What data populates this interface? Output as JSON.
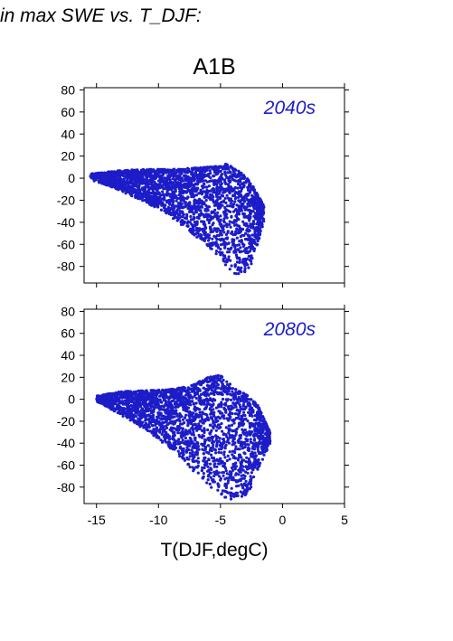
{
  "header_text": "in max SWE vs. T_DJF:",
  "colors": {
    "points": "#1c1cc8",
    "axis": "#000000",
    "period_label": "#1c1cc8"
  },
  "chart_data": [
    {
      "type": "scatter",
      "title": "A1B",
      "period_label": "2040s",
      "xlabel": "",
      "ylabel": "",
      "xlim": [
        -16,
        5
      ],
      "ylim": [
        -95,
        82
      ],
      "yticks": [
        "80",
        "60",
        "40",
        "20",
        "0",
        "-20",
        "-40",
        "-60",
        "-80"
      ],
      "xtick_labels_shown": false,
      "cloud_envelope": {
        "x": [
          -15.5,
          -14.5,
          -13,
          -11,
          -9,
          -7.5,
          -6,
          -5,
          -4.5,
          -4,
          -3.5,
          -3,
          -2.5,
          -2,
          -1.5
        ],
        "upper": [
          4,
          5,
          7,
          8,
          8,
          9,
          10,
          11,
          13,
          10,
          7,
          2,
          -5,
          -15,
          -25
        ],
        "lower": [
          -2,
          -5,
          -12,
          -22,
          -35,
          -48,
          -62,
          -72,
          -80,
          -86,
          -88,
          -85,
          -78,
          -60,
          -40
        ]
      }
    },
    {
      "type": "scatter",
      "title": "",
      "period_label": "2080s",
      "xlabel": "T(DJF,degC)",
      "ylabel": "",
      "xlim": [
        -16,
        5
      ],
      "ylim": [
        -95,
        82
      ],
      "yticks": [
        "80",
        "60",
        "40",
        "20",
        "0",
        "-20",
        "-40",
        "-60",
        "-80"
      ],
      "xticks": [
        "-15",
        "-10",
        "-5",
        "0",
        "5"
      ],
      "cloud_envelope": {
        "x": [
          -15,
          -14,
          -13,
          -11,
          -9,
          -7.5,
          -6,
          -5,
          -4.5,
          -4,
          -3.5,
          -3,
          -2.5,
          -2,
          -1
        ],
        "upper": [
          3,
          5,
          7,
          8,
          9,
          12,
          20,
          22,
          18,
          10,
          8,
          5,
          0,
          -5,
          -30
        ],
        "lower": [
          -2,
          -8,
          -15,
          -28,
          -45,
          -62,
          -78,
          -88,
          -92,
          -93,
          -91,
          -88,
          -80,
          -65,
          -40
        ]
      }
    }
  ]
}
